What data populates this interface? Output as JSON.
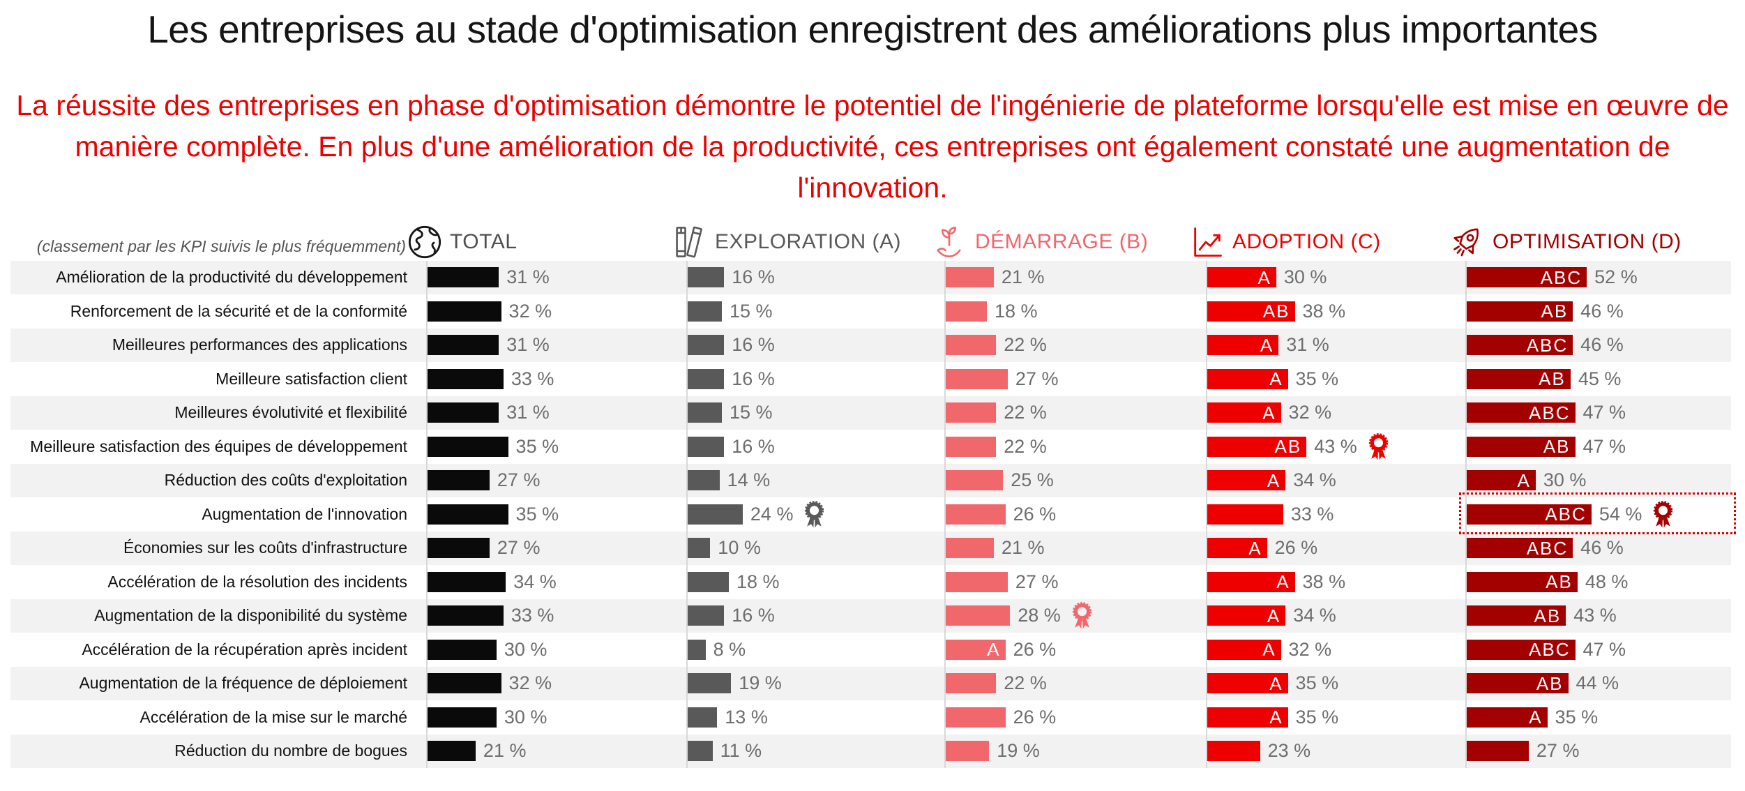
{
  "title": "Les entreprises au stade d'optimisation enregistrent des améliorations plus importantes",
  "subtitle": {
    "line1": "La réussite des entreprises en phase d'optimisation démontre le potentiel de l'ingénierie de plateforme lorsqu'elle est mise en œuvre de",
    "line2": "manière complète. En plus d'une amélioration de la productivité, ces entreprises ont également constaté une augmentation de l'innovation."
  },
  "table": {
    "row_axis_note": "(classement par les KPI suivis le plus fréquemment)",
    "columns": [
      {
        "key": "total",
        "label": "TOTAL",
        "icon": "globe-icon",
        "color": "#0a0a0a"
      },
      {
        "key": "exploration",
        "label": "EXPLORATION (A)",
        "icon": "books-icon",
        "color": "#595959"
      },
      {
        "key": "demarrage",
        "label": "DÉMARRAGE (B)",
        "icon": "seedling-hand-icon",
        "color": "#f0676c"
      },
      {
        "key": "adoption",
        "label": "ADOPTION (C)",
        "icon": "line-chart-icon",
        "color": "#ee0000"
      },
      {
        "key": "optimisation",
        "label": "OPTIMISATION (D)",
        "icon": "rocket-icon",
        "color": "#a30000"
      }
    ]
  },
  "chart_data": {
    "type": "bar",
    "title": "Les entreprises au stade d'optimisation enregistrent des améliorations plus importantes",
    "value_suffix": " %",
    "categories": [
      "Amélioration de la productivité du développement",
      "Renforcement de la sécurité et de la conformité",
      "Meilleures performances des applications",
      "Meilleure satisfaction client",
      "Meilleures évolutivité et flexibilité",
      "Meilleure satisfaction des équipes de développement",
      "Réduction des coûts d'exploitation",
      "Augmentation de l'innovation",
      "Économies sur les coûts d'infrastructure",
      "Accélération de la résolution des incidents",
      "Augmentation de la disponibilité du système",
      "Accélération de la récupération après incident",
      "Augmentation de la fréquence de déploiement",
      "Accélération de la mise sur le marché",
      "Réduction du nombre de bogues"
    ],
    "series": [
      {
        "name": "TOTAL",
        "values": [
          31,
          32,
          31,
          33,
          31,
          35,
          27,
          35,
          27,
          34,
          33,
          30,
          32,
          30,
          21
        ],
        "letters": [
          "",
          "",
          "",
          "",
          "",
          "",
          "",
          "",
          "",
          "",
          "",
          "",
          "",
          "",
          ""
        ],
        "medal_rows": []
      },
      {
        "name": "EXPLORATION (A)",
        "values": [
          16,
          15,
          16,
          16,
          15,
          16,
          14,
          24,
          10,
          18,
          16,
          8,
          19,
          13,
          11
        ],
        "letters": [
          "",
          "",
          "",
          "",
          "",
          "",
          "",
          "",
          "",
          "",
          "",
          "",
          "",
          "",
          ""
        ],
        "medal_rows": [
          7
        ]
      },
      {
        "name": "DÉMARRAGE (B)",
        "values": [
          21,
          18,
          22,
          27,
          22,
          22,
          25,
          26,
          21,
          27,
          28,
          26,
          22,
          26,
          19
        ],
        "letters": [
          "",
          "",
          "",
          "",
          "",
          "",
          "",
          "",
          "",
          "",
          "",
          "A",
          "",
          "",
          ""
        ],
        "medal_rows": [
          10
        ]
      },
      {
        "name": "ADOPTION (C)",
        "values": [
          30,
          38,
          31,
          35,
          32,
          43,
          34,
          33,
          26,
          38,
          34,
          32,
          35,
          35,
          23
        ],
        "letters": [
          "A",
          "AB",
          "A",
          "A",
          "A",
          "AB",
          "A",
          "",
          "A",
          "A",
          "A",
          "A",
          "A",
          "A",
          ""
        ],
        "medal_rows": [
          5
        ]
      },
      {
        "name": "OPTIMISATION (D)",
        "values": [
          52,
          46,
          46,
          45,
          47,
          47,
          30,
          54,
          46,
          48,
          43,
          47,
          44,
          35,
          27
        ],
        "letters": [
          "ABC",
          "AB",
          "ABC",
          "AB",
          "ABC",
          "AB",
          "A",
          "ABC",
          "ABC",
          "AB",
          "AB",
          "ABC",
          "AB",
          "A",
          ""
        ],
        "medal_rows": [
          7
        ]
      }
    ],
    "highlight": {
      "series_index": 4,
      "row_index": 7
    },
    "legend_position": "top",
    "grid": false
  }
}
